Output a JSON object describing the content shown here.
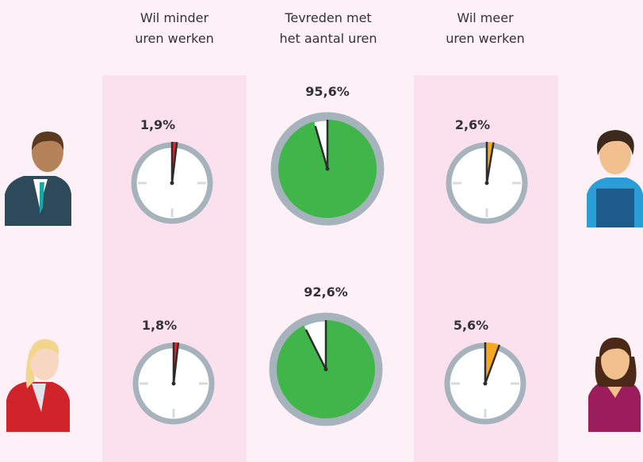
{
  "chart_data": {
    "type": "clock",
    "categories": [
      "Wil minder\nuren werken",
      "Tevreden met\nhet  aantal uren",
      "Wil meer\nuren werken"
    ],
    "colors": [
      "#e3262d",
      "#3fb54a",
      "#f7a823"
    ],
    "series": [
      {
        "values": [
          1.9,
          95.6,
          2.6
        ],
        "value_labels": [
          "1,9%",
          "95,6%",
          "2,6%"
        ]
      },
      {
        "values": [
          1.8,
          92.6,
          5.6
        ],
        "value_labels": [
          "1,8%",
          "92,6%",
          "5,6%"
        ]
      }
    ]
  }
}
